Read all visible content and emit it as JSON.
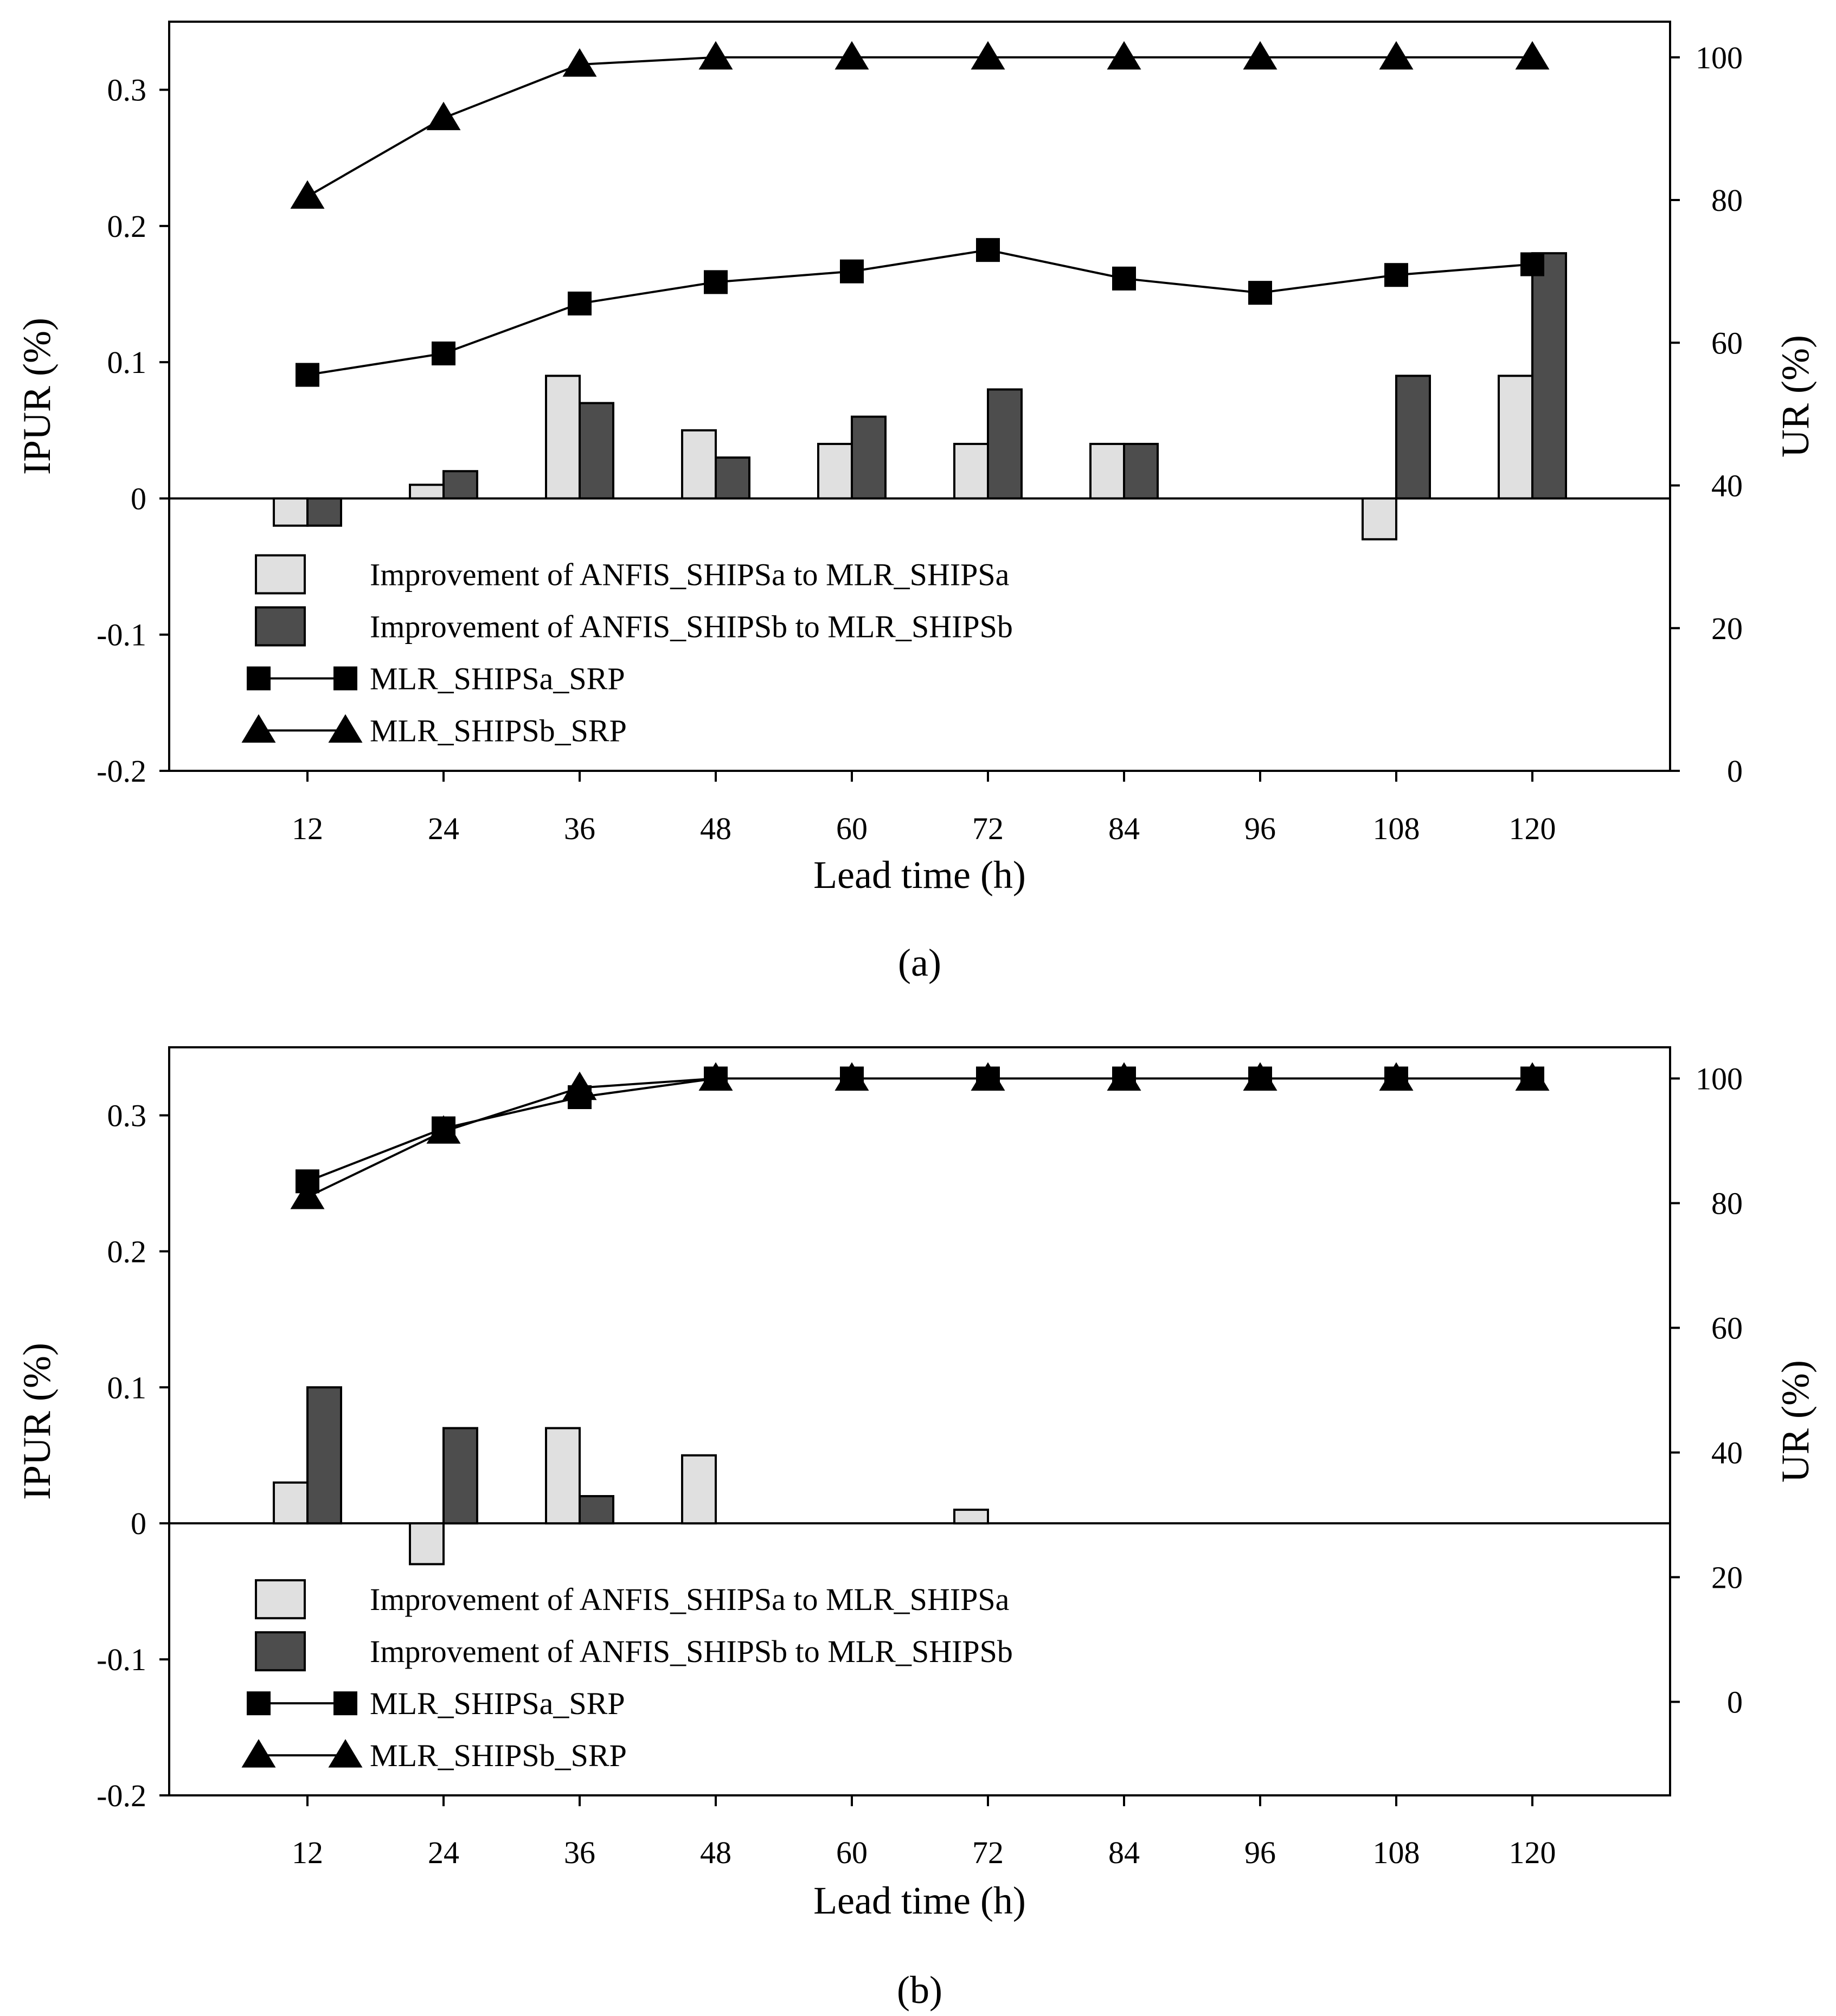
{
  "colors": {
    "light_bar": "#e0e0e0",
    "dark_bar": "#4d4d4d",
    "line": "#000000",
    "marker": "#000000",
    "background": "#ffffff"
  },
  "chart_data": [
    {
      "type": "bar",
      "caption": "(a)",
      "xlabel": "Lead time (h)",
      "ylabel": "IPUR (%)",
      "ylabel_right": "UR (%)",
      "ylim": [
        -0.2,
        0.35
      ],
      "ylim_right": [
        0,
        105
      ],
      "yticks": [
        -0.2,
        -0.1,
        0,
        0.1,
        0.2,
        0.3
      ],
      "ytick_labels": [
        "-0.2",
        "-0.1",
        "0",
        "0.1",
        "0.2",
        "0.3"
      ],
      "yticks_right": [
        0,
        20,
        40,
        60,
        80,
        100
      ],
      "ytick_labels_right": [
        "0",
        "20",
        "40",
        "60",
        "80",
        "100"
      ],
      "categories": [
        "12",
        "24",
        "36",
        "48",
        "60",
        "72",
        "84",
        "96",
        "108",
        "120"
      ],
      "series": [
        {
          "name": "Improvement of ANFIS_SHIPSa to MLR_SHIPSa",
          "kind": "bar",
          "color_key": "light_bar",
          "axis": "left",
          "values": [
            -0.02,
            0.01,
            0.09,
            0.05,
            0.04,
            0.04,
            0.04,
            0,
            -0.03,
            0.09
          ]
        },
        {
          "name": "Improvement of ANFIS_SHIPSb to MLR_SHIPSb",
          "kind": "bar",
          "color_key": "dark_bar",
          "axis": "left",
          "values": [
            -0.02,
            0.02,
            0.07,
            0.03,
            0.06,
            0.08,
            0.04,
            0,
            0.09,
            0.18
          ]
        },
        {
          "name": "MLR_SHIPSa_SRP",
          "kind": "line",
          "marker": "square",
          "axis": "right",
          "values": [
            55.5,
            58.5,
            65.5,
            68.5,
            70,
            73,
            69,
            67,
            69.5,
            71
          ]
        },
        {
          "name": "MLR_SHIPSb_SRP",
          "kind": "line",
          "marker": "triangle",
          "axis": "right",
          "values": [
            80.5,
            91.5,
            99,
            100,
            100,
            100,
            100,
            100,
            100,
            100
          ]
        }
      ],
      "legend_position": "lower-left"
    },
    {
      "type": "bar",
      "caption": "(b)",
      "xlabel": "Lead time (h)",
      "ylabel": "IPUR (%)",
      "ylabel_right": "UR (%)",
      "ylim": [
        -0.2,
        0.35
      ],
      "ylim_right": [
        -15,
        105
      ],
      "yticks": [
        -0.2,
        -0.1,
        0,
        0.1,
        0.2,
        0.3
      ],
      "ytick_labels": [
        "-0.2",
        "-0.1",
        "0",
        "0.1",
        "0.2",
        "0.3"
      ],
      "yticks_right": [
        0,
        20,
        40,
        60,
        80,
        100
      ],
      "ytick_labels_right": [
        "0",
        "20",
        "40",
        "60",
        "80",
        "100"
      ],
      "categories": [
        "12",
        "24",
        "36",
        "48",
        "60",
        "72",
        "84",
        "96",
        "108",
        "120"
      ],
      "series": [
        {
          "name": "Improvement of ANFIS_SHIPSa to MLR_SHIPSa",
          "kind": "bar",
          "color_key": "light_bar",
          "axis": "left",
          "values": [
            0.03,
            -0.03,
            0.07,
            0.05,
            0,
            0.01,
            0,
            0,
            0,
            0
          ]
        },
        {
          "name": "Improvement of ANFIS_SHIPSb to MLR_SHIPSb",
          "kind": "bar",
          "color_key": "dark_bar",
          "axis": "left",
          "values": [
            0.1,
            0.07,
            0.02,
            0,
            0,
            0,
            0,
            0,
            0,
            0
          ]
        },
        {
          "name": "MLR_SHIPSa_SRP",
          "kind": "line",
          "marker": "square",
          "axis": "right",
          "values": [
            83.5,
            92,
            97,
            100,
            100,
            100,
            100,
            100,
            100,
            100
          ]
        },
        {
          "name": "MLR_SHIPSb_SRP",
          "kind": "line",
          "marker": "triangle",
          "axis": "right",
          "values": [
            81,
            91.5,
            98.5,
            100,
            100,
            100,
            100,
            100,
            100,
            100
          ]
        }
      ],
      "legend_position": "lower-left"
    }
  ]
}
